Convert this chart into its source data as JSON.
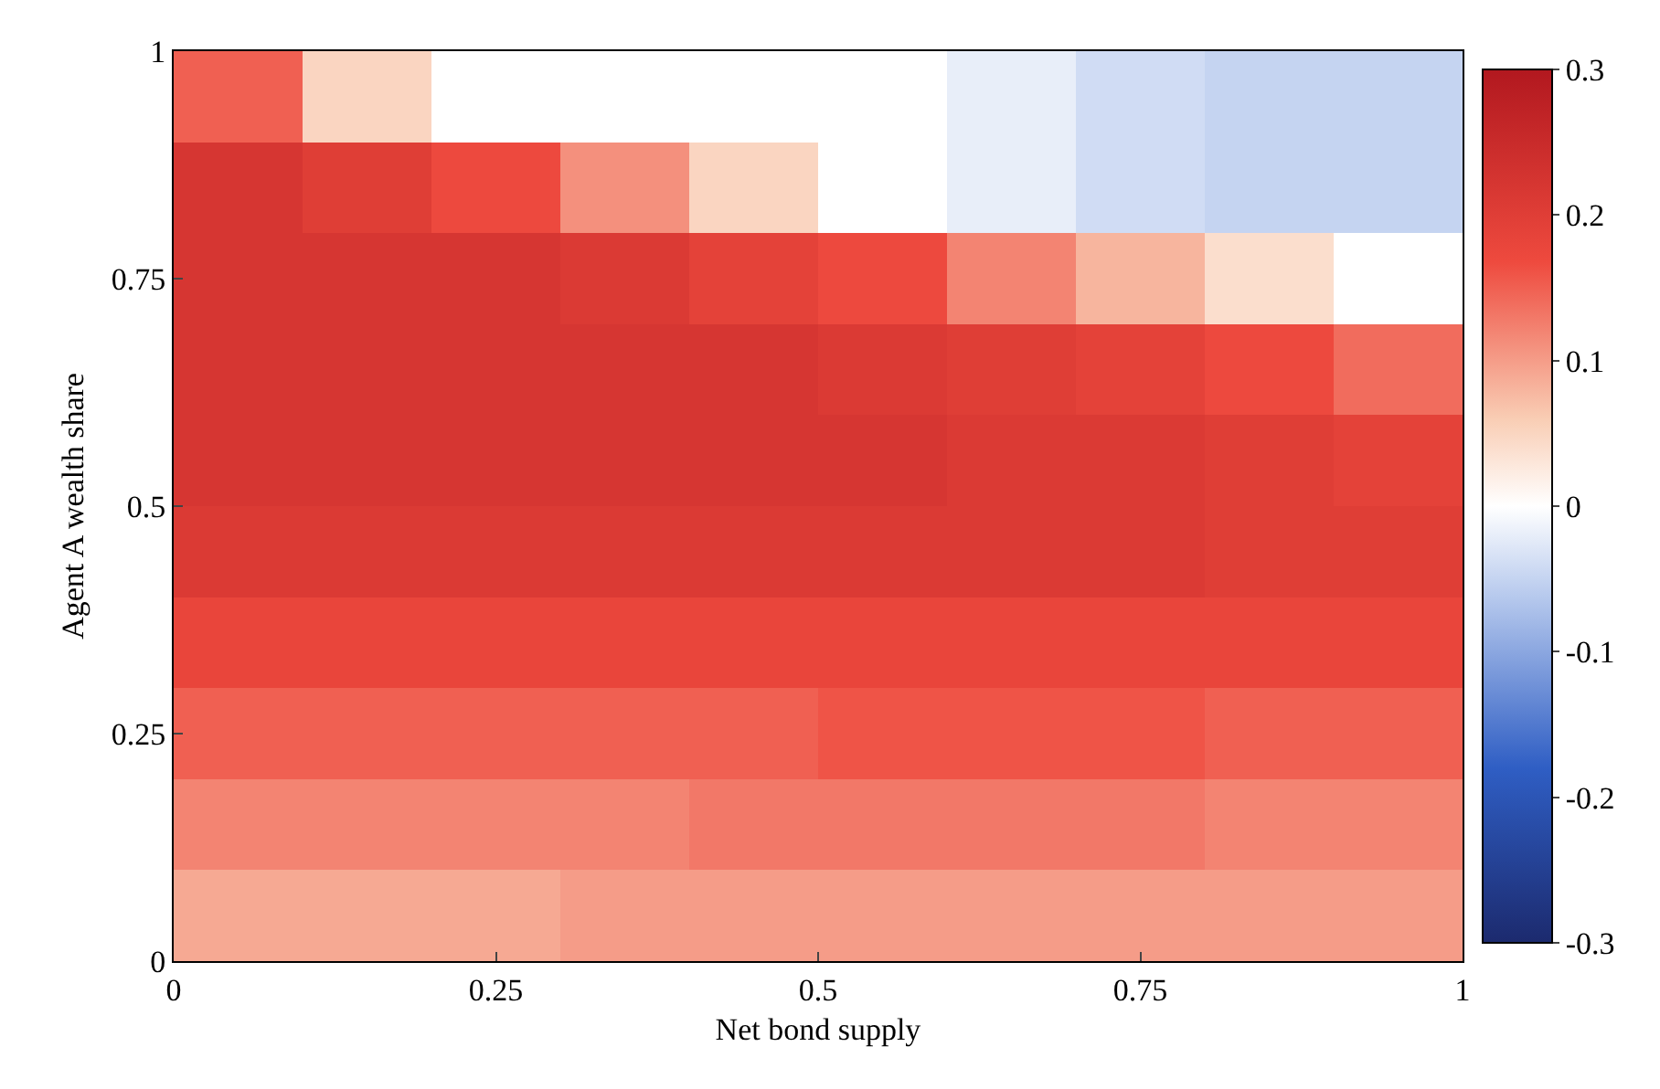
{
  "chart_data": {
    "type": "heatmap",
    "xlabel": "Net bond supply",
    "ylabel": "Agent A wealth share",
    "x": [
      0.05,
      0.15,
      0.25,
      0.35,
      0.45,
      0.55,
      0.65,
      0.75,
      0.85,
      0.95
    ],
    "xlim": [
      0,
      1
    ],
    "xticks": [
      0,
      0.25,
      0.5,
      0.75,
      1
    ],
    "ylim": [
      0,
      1
    ],
    "yticks": [
      0,
      0.25,
      0.5,
      0.75,
      1
    ],
    "cells": [
      [
        0.15,
        0.05,
        0,
        0,
        0,
        0,
        -0.02,
        -0.04,
        -0.05,
        -0.05
      ],
      [
        0.22,
        0.2,
        0.17,
        0.11,
        0.05,
        0,
        -0.02,
        -0.04,
        -0.05,
        -0.05
      ],
      [
        0.22,
        0.22,
        0.22,
        0.21,
        0.19,
        0.17,
        0.12,
        0.08,
        0.04,
        0
      ],
      [
        0.22,
        0.22,
        0.22,
        0.22,
        0.22,
        0.21,
        0.2,
        0.19,
        0.17,
        0.14
      ],
      [
        0.22,
        0.22,
        0.22,
        0.22,
        0.22,
        0.22,
        0.21,
        0.21,
        0.2,
        0.19
      ],
      [
        0.21,
        0.21,
        0.21,
        0.21,
        0.21,
        0.21,
        0.21,
        0.21,
        0.2,
        0.2
      ],
      [
        0.18,
        0.18,
        0.18,
        0.18,
        0.18,
        0.18,
        0.18,
        0.18,
        0.18,
        0.18
      ],
      [
        0.15,
        0.15,
        0.15,
        0.15,
        0.15,
        0.16,
        0.16,
        0.16,
        0.15,
        0.15
      ],
      [
        0.12,
        0.12,
        0.12,
        0.12,
        0.13,
        0.13,
        0.13,
        0.13,
        0.12,
        0.12
      ],
      [
        0.09,
        0.09,
        0.09,
        0.1,
        0.1,
        0.1,
        0.1,
        0.1,
        0.1,
        0.1
      ]
    ],
    "clim": [
      -0.3,
      0.3
    ],
    "cticks": [
      -0.3,
      -0.2,
      -0.1,
      0,
      0.1,
      0.2,
      0.3
    ]
  }
}
